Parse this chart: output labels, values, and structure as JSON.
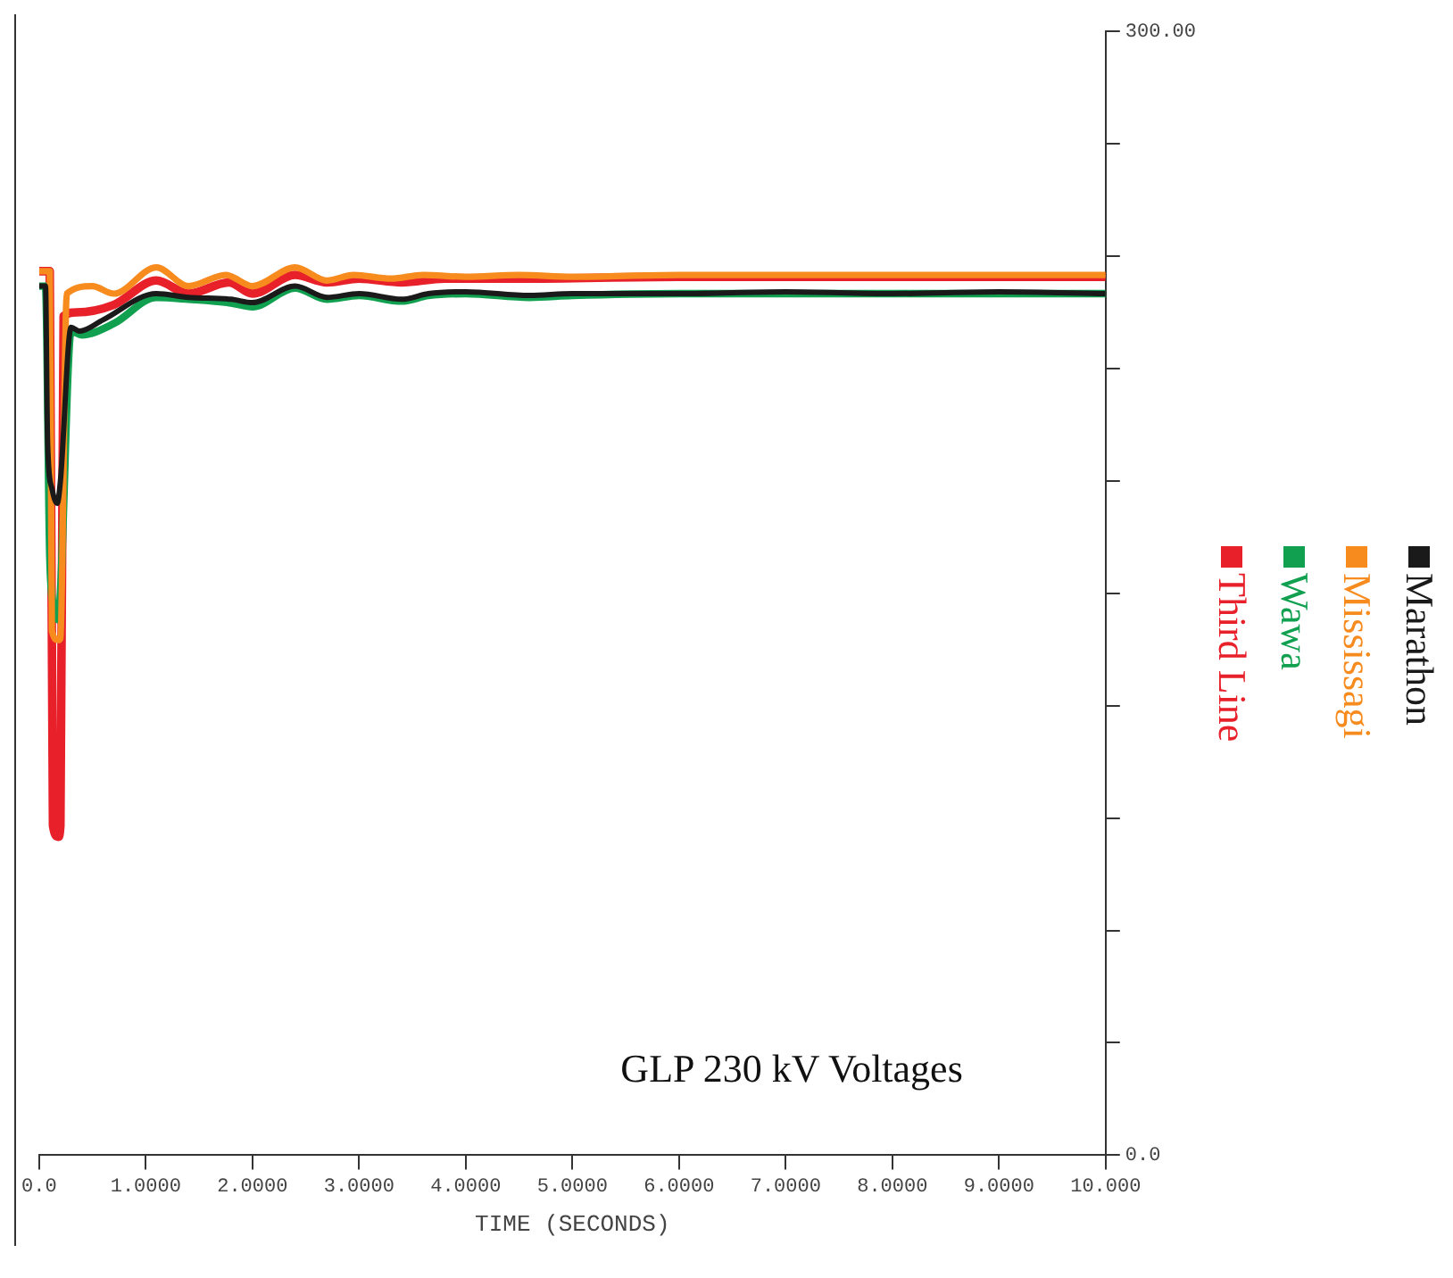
{
  "chart_data": {
    "type": "line",
    "title": "GLP 230 kV Voltages",
    "xlabel": "TIME (SECONDS)",
    "xlim": [
      0,
      10
    ],
    "xticks": [
      {
        "value": 0,
        "label": "0.0"
      },
      {
        "value": 1,
        "label": "1.0000"
      },
      {
        "value": 2,
        "label": "2.0000"
      },
      {
        "value": 3,
        "label": "3.0000"
      },
      {
        "value": 4,
        "label": "4.0000"
      },
      {
        "value": 5,
        "label": "5.0000"
      },
      {
        "value": 6,
        "label": "6.0000"
      },
      {
        "value": 7,
        "label": "7.0000"
      },
      {
        "value": 8,
        "label": "8.0000"
      },
      {
        "value": 9,
        "label": "9.0000"
      },
      {
        "value": 10,
        "label": "10.000"
      }
    ],
    "ylim": [
      0,
      300
    ],
    "yticks": [
      {
        "value": 0,
        "label": "0.0"
      },
      {
        "value": 30,
        "label": null
      },
      {
        "value": 60,
        "label": null
      },
      {
        "value": 90,
        "label": null
      },
      {
        "value": 120,
        "label": null
      },
      {
        "value": 150,
        "label": null
      },
      {
        "value": 180,
        "label": null
      },
      {
        "value": 210,
        "label": null
      },
      {
        "value": 240,
        "label": null
      },
      {
        "value": 270,
        "label": null
      },
      {
        "value": 300,
        "label": "300.00"
      }
    ],
    "grid": false,
    "legend": "right",
    "line_style": "solid",
    "series": [
      {
        "name": "Third Line",
        "color": "#e8202a",
        "x": [
          0,
          0.1,
          0.13,
          0.18,
          0.2,
          0.23,
          0.35,
          0.7,
          1.1,
          1.4,
          1.78,
          2.0,
          2.4,
          2.7,
          3.0,
          3.4,
          3.8,
          4.5,
          6,
          8,
          10
        ],
        "values": [
          236,
          236,
          88,
          85,
          88,
          224,
          225,
          227,
          233.5,
          230,
          233,
          230,
          235,
          233,
          234,
          233,
          234,
          234,
          234.5,
          234.5,
          234.5
        ]
      },
      {
        "name": "Wawa",
        "color": "#10a050",
        "x": [
          0,
          0.06,
          0.1,
          0.14,
          0.18,
          0.2,
          0.3,
          0.4,
          0.7,
          1.1,
          1.4,
          1.8,
          2.0,
          2.4,
          2.7,
          3.0,
          3.4,
          3.65,
          4.0,
          4.6,
          5.0,
          6,
          7,
          8,
          9,
          10
        ],
        "values": [
          232,
          232,
          160,
          146,
          143,
          150,
          220,
          219,
          222,
          229,
          228.5,
          227.5,
          226.5,
          231.5,
          228.5,
          229.5,
          228,
          229.5,
          230,
          229,
          229.5,
          230,
          230,
          230,
          230,
          230
        ]
      },
      {
        "name": "Mississagi",
        "color": "#f78b1e",
        "x": [
          0,
          0.1,
          0.12,
          0.18,
          0.2,
          0.26,
          0.5,
          0.7,
          1.1,
          1.4,
          1.75,
          2.0,
          2.4,
          2.7,
          2.95,
          3.3,
          3.6,
          4.0,
          4.5,
          5.0,
          6,
          7,
          8,
          9,
          10
        ],
        "values": [
          236,
          236,
          140,
          137.5,
          138,
          230,
          232,
          230,
          237,
          232,
          235,
          232,
          237,
          233.5,
          235,
          234,
          235,
          234.5,
          235,
          234.5,
          235,
          235,
          235,
          235,
          235
        ]
      },
      {
        "name": "Marathon",
        "color": "#1a1a1a",
        "x": [
          0,
          0.06,
          0.08,
          0.12,
          0.17,
          0.2,
          0.3,
          0.38,
          0.6,
          1.1,
          1.4,
          1.8,
          2.0,
          2.4,
          2.7,
          3.0,
          3.4,
          3.65,
          4.0,
          4.6,
          5.0,
          6,
          7,
          8,
          9,
          10
        ],
        "values": [
          232,
          232,
          190,
          178,
          174,
          180,
          221,
          220,
          223,
          230,
          229,
          228.5,
          227.6,
          232,
          229,
          230,
          228.5,
          230,
          230.5,
          229.5,
          230,
          230,
          230.5,
          230,
          230.5,
          230
        ]
      }
    ]
  }
}
